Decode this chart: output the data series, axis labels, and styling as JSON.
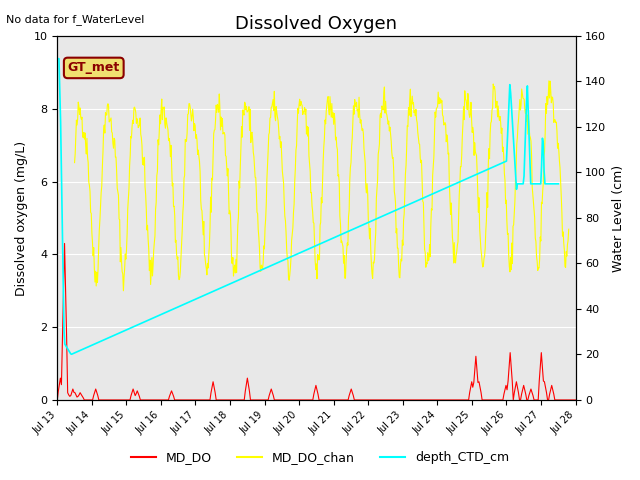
{
  "title": "Dissolved Oxygen",
  "top_left_text": "No data for f_WaterLevel",
  "gt_label": "GT_met",
  "ylabel_left": "Dissolved oxygen (mg/L)",
  "ylabel_right": "Water Level (cm)",
  "ylim_left": [
    0,
    10
  ],
  "ylim_right": [
    0,
    160
  ],
  "xlim": [
    13.0,
    28.0
  ],
  "xtick_labels": [
    "Jul 13",
    "Jul 14",
    "Jul 15",
    "Jul 16",
    "Jul 17",
    "Jul 18",
    "Jul 19",
    "Jul 20",
    "Jul 21",
    "Jul 22",
    "Jul 23",
    "Jul 24",
    "Jul 25",
    "Jul 26",
    "Jul 27",
    "Jul 28"
  ],
  "xtick_positions": [
    13,
    14,
    15,
    16,
    17,
    18,
    19,
    20,
    21,
    22,
    23,
    24,
    25,
    26,
    27,
    28
  ],
  "bg_color": "#e8e8e8",
  "legend_entries": [
    "MD_DO",
    "MD_DO_chan",
    "depth_CTD_cm"
  ],
  "legend_colors": [
    "#ff0000",
    "#ffff00",
    "#00e5ff"
  ]
}
